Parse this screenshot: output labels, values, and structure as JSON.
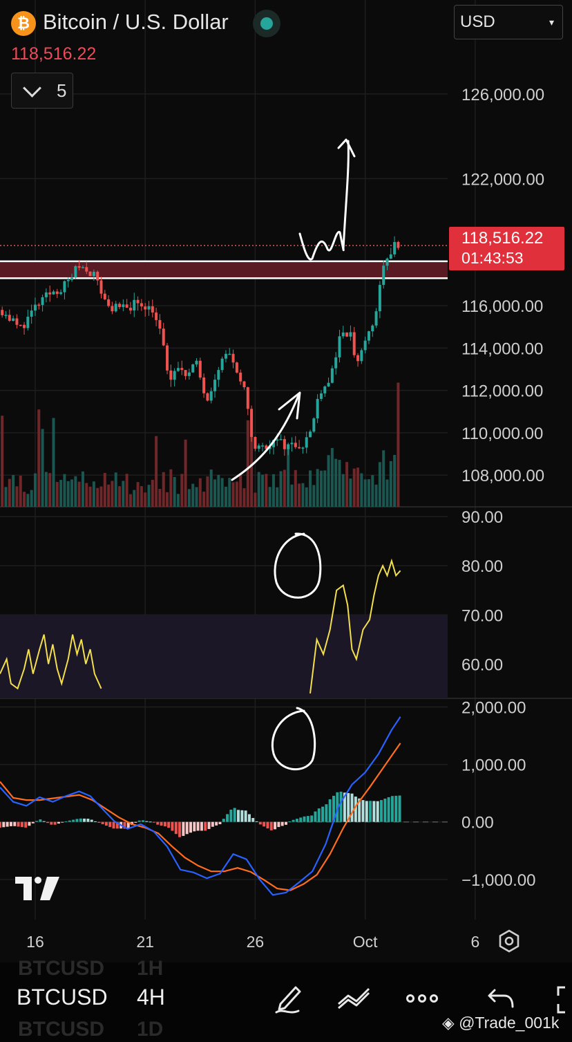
{
  "header": {
    "title": "Bitcoin / U.S. Dollar",
    "last_price": "118,516.22",
    "collapse_count": "5",
    "currency": "USD",
    "logo_glyph": "₿",
    "logo_icon": "bitcoin-icon",
    "status_color": "#26a69a"
  },
  "price_tag": {
    "price": "118,516.22",
    "countdown": "01:43:53",
    "color": "#e0303b"
  },
  "x_ticks": [
    {
      "label": "16",
      "day": 16
    },
    {
      "label": "21",
      "day": 21
    },
    {
      "label": "26",
      "day": 26
    },
    {
      "label": "Oct",
      "day": 31
    },
    {
      "label": "6",
      "day": 36
    }
  ],
  "chart_data": [
    {
      "type": "candlestick",
      "panel": "price",
      "y_ticks": [
        "126,000.00",
        "122,000.00",
        "116,000.00",
        "114,000.00",
        "112,000.00",
        "110,000.00",
        "108,000.00"
      ],
      "ylim": [
        106500,
        127500
      ],
      "x_range_days": [
        14.4,
        40.4
      ],
      "last_price": 118516.22,
      "resistance_zone": [
        117300,
        118100
      ],
      "colors": {
        "up": "#26a69a",
        "down": "#ef5350",
        "zone": "#5a1a24"
      },
      "path": [
        [
          14.5,
          115800
        ],
        [
          15.3,
          114900
        ],
        [
          16.0,
          115900
        ],
        [
          16.7,
          116600
        ],
        [
          17.3,
          116900
        ],
        [
          18.0,
          117900
        ],
        [
          18.6,
          117600
        ],
        [
          19.3,
          116000
        ],
        [
          19.9,
          115800
        ],
        [
          20.7,
          116200
        ],
        [
          21.4,
          115800
        ],
        [
          21.8,
          114200
        ],
        [
          22.1,
          112400
        ],
        [
          22.6,
          113100
        ],
        [
          23.0,
          112800
        ],
        [
          23.3,
          113300
        ],
        [
          23.8,
          111600
        ],
        [
          24.3,
          113100
        ],
        [
          24.8,
          113900
        ],
        [
          25.2,
          112500
        ],
        [
          25.6,
          111800
        ],
        [
          25.9,
          109300
        ],
        [
          26.3,
          109300
        ],
        [
          26.8,
          109600
        ],
        [
          27.5,
          109400
        ],
        [
          28.2,
          109500
        ],
        [
          28.6,
          110200
        ],
        [
          28.9,
          112000
        ],
        [
          29.4,
          112500
        ],
        [
          29.8,
          114300
        ],
        [
          30.3,
          114800
        ],
        [
          30.6,
          113200
        ],
        [
          31.0,
          114400
        ],
        [
          31.4,
          115000
        ],
        [
          31.7,
          117400
        ],
        [
          32.0,
          118100
        ],
        [
          32.3,
          118900
        ],
        [
          32.6,
          118500
        ]
      ],
      "volume_max": 1.0
    },
    {
      "type": "line",
      "panel": "oscillator",
      "y_ticks": [
        "90.00",
        "80.00",
        "70.00",
        "60.00"
      ],
      "ylim": [
        53,
        92
      ],
      "band": [
        54,
        70
      ],
      "color": "#f4e04d",
      "segments": [
        [
          [
            14.4,
            58
          ],
          [
            14.7,
            61
          ],
          [
            14.9,
            56
          ],
          [
            15.2,
            55
          ],
          [
            15.5,
            59
          ],
          [
            15.7,
            63
          ],
          [
            15.9,
            58
          ],
          [
            16.2,
            63
          ],
          [
            16.4,
            66
          ],
          [
            16.6,
            60
          ],
          [
            16.8,
            64
          ],
          [
            17.0,
            59
          ],
          [
            17.2,
            56
          ],
          [
            17.5,
            61
          ],
          [
            17.7,
            66
          ],
          [
            17.9,
            62
          ],
          [
            18.1,
            65
          ],
          [
            18.3,
            60
          ],
          [
            18.5,
            63
          ],
          [
            18.7,
            58
          ],
          [
            19.0,
            55
          ]
        ],
        [
          [
            28.5,
            54
          ],
          [
            28.8,
            65
          ],
          [
            29.1,
            62
          ],
          [
            29.4,
            67
          ],
          [
            29.7,
            75
          ],
          [
            30.0,
            76
          ],
          [
            30.2,
            72
          ],
          [
            30.4,
            63
          ],
          [
            30.6,
            61
          ],
          [
            30.9,
            67
          ],
          [
            31.2,
            69
          ],
          [
            31.4,
            74
          ],
          [
            31.6,
            78
          ],
          [
            31.8,
            80
          ],
          [
            32.0,
            78
          ],
          [
            32.2,
            81
          ],
          [
            32.4,
            78
          ],
          [
            32.6,
            79
          ]
        ]
      ]
    },
    {
      "type": "line",
      "panel": "macd",
      "y_ticks": [
        "2,000.00",
        "1,000.00",
        "0.00",
        "−1,000.00"
      ],
      "ylim": [
        -1700,
        2150
      ],
      "colors": {
        "macd": "#2962ff",
        "signal": "#ff6d1f",
        "hist_up": "#26a69a",
        "hist_down": "#ef5350",
        "hist_light": "#b2dfdb"
      },
      "macd": [
        [
          14.4,
          600
        ],
        [
          15.0,
          350
        ],
        [
          15.6,
          280
        ],
        [
          16.2,
          430
        ],
        [
          16.8,
          350
        ],
        [
          17.4,
          450
        ],
        [
          18.0,
          530
        ],
        [
          18.5,
          450
        ],
        [
          19.0,
          250
        ],
        [
          19.6,
          10
        ],
        [
          20.2,
          -120
        ],
        [
          20.8,
          -40
        ],
        [
          21.4,
          -170
        ],
        [
          22.0,
          -430
        ],
        [
          22.6,
          -830
        ],
        [
          23.2,
          -880
        ],
        [
          23.8,
          -980
        ],
        [
          24.4,
          -900
        ],
        [
          25.0,
          -560
        ],
        [
          25.6,
          -650
        ],
        [
          26.2,
          -1000
        ],
        [
          26.8,
          -1270
        ],
        [
          27.4,
          -1230
        ],
        [
          28.0,
          -1050
        ],
        [
          28.6,
          -860
        ],
        [
          29.2,
          -390
        ],
        [
          29.8,
          280
        ],
        [
          30.4,
          650
        ],
        [
          31.0,
          860
        ],
        [
          31.6,
          1180
        ],
        [
          32.2,
          1600
        ],
        [
          32.6,
          1830
        ]
      ],
      "signal": [
        [
          14.4,
          700
        ],
        [
          15.0,
          420
        ],
        [
          15.6,
          380
        ],
        [
          16.2,
          380
        ],
        [
          16.8,
          410
        ],
        [
          17.4,
          440
        ],
        [
          18.0,
          470
        ],
        [
          18.6,
          380
        ],
        [
          19.2,
          230
        ],
        [
          19.8,
          80
        ],
        [
          20.4,
          -40
        ],
        [
          21.0,
          -100
        ],
        [
          21.6,
          -200
        ],
        [
          22.2,
          -420
        ],
        [
          22.8,
          -620
        ],
        [
          23.4,
          -760
        ],
        [
          24.0,
          -860
        ],
        [
          24.6,
          -860
        ],
        [
          25.2,
          -800
        ],
        [
          25.8,
          -870
        ],
        [
          26.4,
          -1010
        ],
        [
          27.0,
          -1160
        ],
        [
          27.6,
          -1190
        ],
        [
          28.2,
          -1080
        ],
        [
          28.8,
          -920
        ],
        [
          29.4,
          -560
        ],
        [
          30.0,
          -110
        ],
        [
          30.6,
          290
        ],
        [
          31.2,
          600
        ],
        [
          31.8,
          930
        ],
        [
          32.6,
          1370
        ]
      ]
    }
  ],
  "bottom": {
    "symbol": "BTCUSD",
    "interval": "4H",
    "ghost_above": [
      "BTCUSD",
      "1H"
    ],
    "ghost_below": [
      "BTCUSD",
      "1D"
    ],
    "tools": [
      "draw-pen-icon",
      "trendline-icon",
      "more-icon",
      "undo-icon",
      "fullscreen-icon"
    ],
    "watermark": "@Trade_001k"
  }
}
